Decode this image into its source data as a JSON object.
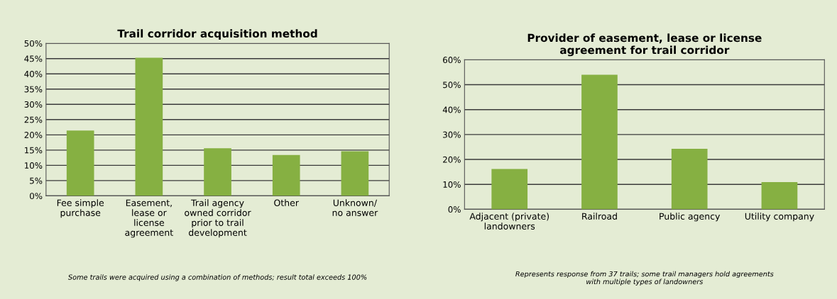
{
  "chart_data": [
    {
      "type": "bar",
      "title": "Trail corridor acquisition method",
      "categories": [
        "Fee simple\npurchase",
        "Easement,\nlease or\nlicense\nagreement",
        "Trail agency\nowned corridor\nprior to trail\ndevelopment",
        "Other",
        "Unknown/\nno answer"
      ],
      "values": [
        21.4,
        45.3,
        15.6,
        13.4,
        14.6
      ],
      "color": "#86b042",
      "ylim": [
        0,
        50
      ],
      "yticks": [
        {
          "value": 0,
          "label": "0%"
        },
        {
          "value": 5,
          "label": "5%"
        },
        {
          "value": 10,
          "label": "10%"
        },
        {
          "value": 15,
          "label": "15%"
        },
        {
          "value": 20,
          "label": "20%"
        },
        {
          "value": 25,
          "label": "25%"
        },
        {
          "value": 30,
          "label": "30%"
        },
        {
          "value": 35,
          "label": "35%"
        },
        {
          "value": 40,
          "label": "40%"
        },
        {
          "value": 45,
          "label": "45%"
        },
        {
          "value": 50,
          "label": "50%"
        }
      ],
      "grid": "y",
      "legend": false,
      "annotations": [
        "Some trails were acquired using a combination of methods; result total exceeds 100%"
      ]
    },
    {
      "type": "bar",
      "title": "Provider of easement, lease or license\nagreement for trail corridor",
      "categories": [
        "Adjacent (private)\nlandowners",
        "Railroad",
        "Public agency",
        "Utility company"
      ],
      "values": [
        16.2,
        54.0,
        24.3,
        10.9
      ],
      "color": "#86b042",
      "ylim": [
        0,
        60
      ],
      "yticks": [
        {
          "value": 0,
          "label": "0%"
        },
        {
          "value": 10,
          "label": "10%"
        },
        {
          "value": 20,
          "label": "20%"
        },
        {
          "value": 30,
          "label": "30%"
        },
        {
          "value": 40,
          "label": "40%"
        },
        {
          "value": 50,
          "label": "50%"
        },
        {
          "value": 60,
          "label": "60%"
        }
      ],
      "grid": "y",
      "legend": false,
      "annotations": [
        "Represents response from 37 trails; some trail managers hold agreements\nwith multiple types of landowners"
      ]
    }
  ]
}
